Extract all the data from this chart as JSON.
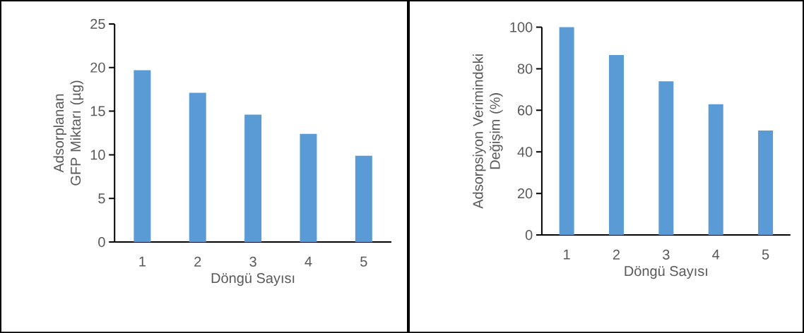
{
  "chart_data": [
    {
      "type": "bar",
      "xlabel": "Döngü Sayısı",
      "ylabel": "Adsorplanan GFP Miktarı (µg)",
      "categories": [
        "1",
        "2",
        "3",
        "4",
        "5"
      ],
      "values": [
        19.7,
        17.1,
        14.6,
        12.4,
        9.9
      ],
      "color": "#5b9bd5",
      "ylim": [
        0,
        25
      ],
      "yticks": [
        0,
        5,
        10,
        15,
        20,
        25
      ]
    },
    {
      "type": "bar",
      "xlabel": "Döngü Sayısı",
      "ylabel": "Adsorpsiyon  Verimindeki Değişim (%)",
      "categories": [
        "1",
        "2",
        "3",
        "4",
        "5"
      ],
      "values": [
        100,
        86.6,
        74.0,
        62.9,
        50.3
      ],
      "color": "#5b9bd5",
      "ylim": [
        0,
        100
      ],
      "yticks": [
        0,
        20,
        40,
        60,
        80,
        100
      ]
    }
  ]
}
